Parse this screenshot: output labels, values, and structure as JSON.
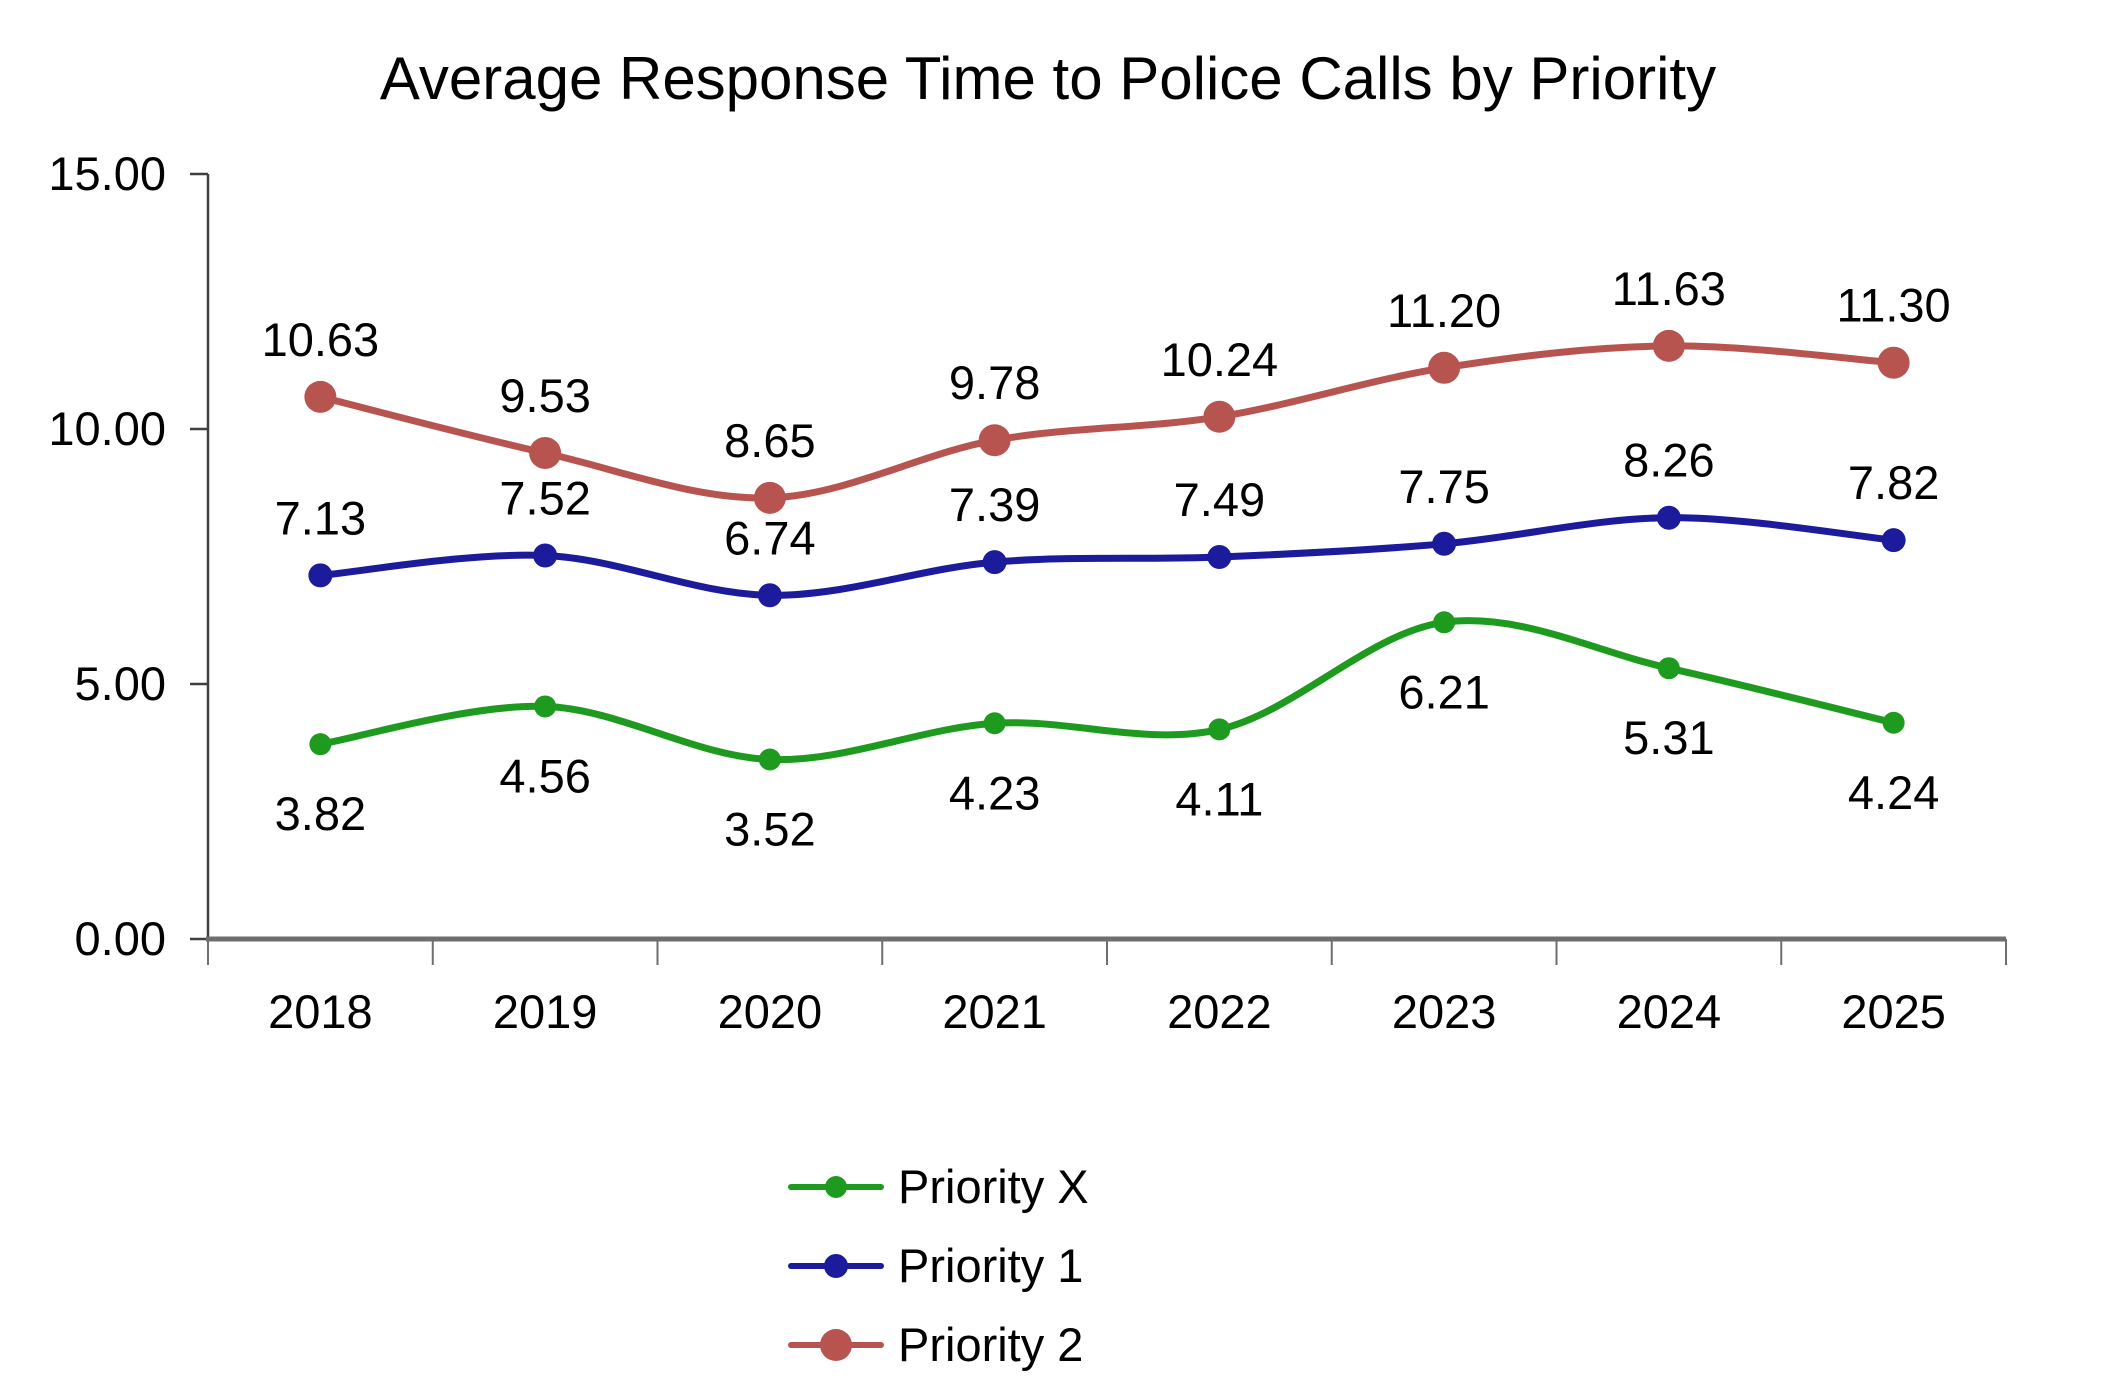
{
  "title": "Average Response Time to Police Calls by Priority",
  "chart_data": {
    "type": "line",
    "title": "Average Response Time to Police Calls by Priority",
    "categories": [
      "2018",
      "2019",
      "2020",
      "2021",
      "2022",
      "2023",
      "2024",
      "2025"
    ],
    "series": [
      {
        "name": "Priority X",
        "color": "#1e9b1e",
        "marker_radius": 11,
        "label_position": "below",
        "values": [
          3.82,
          4.56,
          3.52,
          4.23,
          4.11,
          6.21,
          5.31,
          4.24
        ]
      },
      {
        "name": "Priority 1",
        "color": "#1b1b9c",
        "marker_radius": 12,
        "label_position": "above",
        "values": [
          7.13,
          7.52,
          6.74,
          7.39,
          7.49,
          7.75,
          8.26,
          7.82
        ]
      },
      {
        "name": "Priority 2",
        "color": "#b85450",
        "marker_radius": 16,
        "label_position": "above",
        "values": [
          10.63,
          9.53,
          8.65,
          9.78,
          10.24,
          11.2,
          11.63,
          11.3
        ]
      }
    ],
    "xlabel": "",
    "ylabel": "",
    "ylim": [
      0,
      15
    ],
    "ytick_labels": [
      "0.00",
      "5.00",
      "10.00",
      "15.00"
    ],
    "grid": "off",
    "line_style": "smooth",
    "data_labels": "on",
    "legend_position": "bottom",
    "colors": {
      "x_axis_line": "#6e6e6e",
      "y_axis_line": "#3f3f3f",
      "x_tick": "#6e6e6e",
      "y_tick": "#3f3f3f",
      "text": "#000000"
    }
  }
}
